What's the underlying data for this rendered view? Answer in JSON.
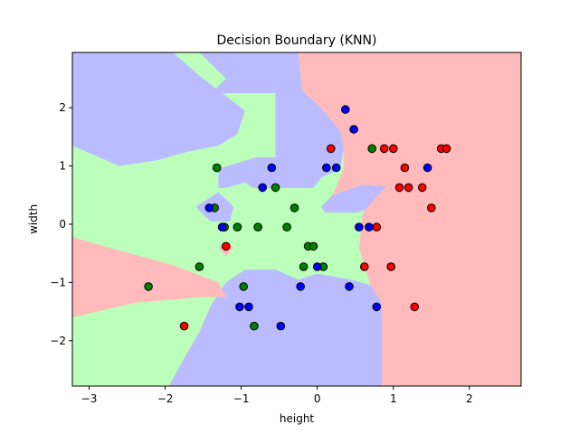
{
  "chart_data": {
    "type": "scatter",
    "title": "Decision Boundary (KNN)",
    "xlabel": "height",
    "ylabel": "width",
    "xlim": [
      -3.22,
      2.68
    ],
    "ylim": [
      -2.78,
      2.95
    ],
    "xticks": [
      -3,
      -2,
      -1,
      0,
      1,
      2
    ],
    "yticks": [
      -2,
      -1,
      0,
      1,
      2
    ],
    "grid": false,
    "region_colors": {
      "red": "#ffbbbb",
      "green": "#bbffbb",
      "blue": "#bbbbff"
    },
    "point_colors": {
      "red": "#ff0000",
      "green": "#008000",
      "blue": "#0000ff"
    },
    "regions": [
      {
        "class": "blue",
        "polygon": [
          [
            -3.22,
            2.95
          ],
          [
            -1.9,
            2.95
          ],
          [
            -1.55,
            2.55
          ],
          [
            -1.25,
            2.25
          ],
          [
            -0.95,
            1.95
          ],
          [
            -1.05,
            1.55
          ],
          [
            -1.3,
            1.35
          ],
          [
            -1.7,
            1.25
          ],
          [
            -2.1,
            1.1
          ],
          [
            -2.6,
            1.0
          ],
          [
            -3.22,
            1.35
          ]
        ]
      },
      {
        "class": "blue",
        "polygon": [
          [
            -1.55,
            2.95
          ],
          [
            -0.25,
            2.95
          ],
          [
            -0.2,
            2.3
          ],
          [
            0.05,
            2.0
          ],
          [
            0.3,
            1.6
          ],
          [
            0.35,
            1.3
          ],
          [
            0.3,
            0.95
          ],
          [
            0.05,
            0.8
          ],
          [
            -0.05,
            0.62
          ],
          [
            -0.55,
            0.62
          ],
          [
            -0.55,
            1.15
          ],
          [
            -0.55,
            2.25
          ],
          [
            -1.4,
            2.25
          ],
          [
            -1.2,
            2.5
          ]
        ]
      },
      {
        "class": "blue",
        "polygon": [
          [
            -1.3,
            0.95
          ],
          [
            -0.8,
            1.15
          ],
          [
            -0.55,
            1.15
          ],
          [
            -0.55,
            0.62
          ],
          [
            -0.85,
            0.62
          ],
          [
            -0.95,
            0.72
          ],
          [
            -1.2,
            0.62
          ],
          [
            -1.3,
            0.62
          ]
        ]
      },
      {
        "class": "blue",
        "polygon": [
          [
            -1.6,
            0.3
          ],
          [
            -1.3,
            0.55
          ],
          [
            -1.1,
            0.3
          ],
          [
            -1.15,
            0.05
          ],
          [
            -1.4,
            0.05
          ]
        ]
      },
      {
        "class": "blue",
        "polygon": [
          [
            0.05,
            0.3
          ],
          [
            0.2,
            0.5
          ],
          [
            0.6,
            0.68
          ],
          [
            0.9,
            0.65
          ],
          [
            0.8,
            0.3
          ],
          [
            0.5,
            0.2
          ],
          [
            0.1,
            0.2
          ]
        ]
      },
      {
        "class": "blue",
        "polygon": [
          [
            -1.95,
            -2.78
          ],
          [
            0.85,
            -2.78
          ],
          [
            0.85,
            -1.35
          ],
          [
            0.7,
            -1.05
          ],
          [
            0.45,
            -0.95
          ],
          [
            0.0,
            -0.85
          ],
          [
            -0.25,
            -0.95
          ],
          [
            -0.55,
            -0.78
          ],
          [
            -0.95,
            -0.78
          ],
          [
            -1.2,
            -1.0
          ],
          [
            -1.4,
            -1.4
          ],
          [
            -1.55,
            -1.85
          ],
          [
            -1.75,
            -2.3
          ]
        ]
      },
      {
        "class": "red",
        "polygon": [
          [
            -0.25,
            2.95
          ],
          [
            2.68,
            2.95
          ],
          [
            2.68,
            -2.78
          ],
          [
            0.85,
            -2.78
          ],
          [
            0.85,
            -1.35
          ],
          [
            0.7,
            -1.05
          ],
          [
            0.55,
            -0.4
          ],
          [
            0.6,
            0.2
          ],
          [
            0.9,
            0.65
          ],
          [
            0.6,
            0.68
          ],
          [
            0.2,
            0.5
          ],
          [
            0.35,
            0.95
          ],
          [
            0.35,
            1.3
          ],
          [
            0.3,
            1.6
          ],
          [
            0.05,
            2.0
          ],
          [
            -0.2,
            2.3
          ]
        ]
      },
      {
        "class": "red",
        "polygon": [
          [
            -3.22,
            -0.22
          ],
          [
            -2.6,
            -0.45
          ],
          [
            -1.9,
            -0.7
          ],
          [
            -1.3,
            -1.0
          ],
          [
            -1.2,
            -1.25
          ],
          [
            -1.5,
            -1.25
          ],
          [
            -2.4,
            -1.35
          ],
          [
            -3.22,
            -1.6
          ]
        ]
      },
      {
        "class": "red",
        "polygon": [
          [
            -1.3,
            -0.4
          ],
          [
            -1.2,
            -0.55
          ],
          [
            -1.1,
            -0.4
          ],
          [
            -1.2,
            -0.3
          ]
        ]
      }
    ],
    "series": [
      {
        "class": "red",
        "points": [
          [
            0.18,
            1.3
          ],
          [
            0.88,
            1.3
          ],
          [
            1.0,
            1.3
          ],
          [
            1.63,
            1.3
          ],
          [
            1.7,
            1.3
          ],
          [
            1.15,
            0.97
          ],
          [
            1.08,
            0.63
          ],
          [
            1.2,
            0.63
          ],
          [
            1.38,
            0.63
          ],
          [
            1.5,
            0.28
          ],
          [
            0.78,
            -0.05
          ],
          [
            0.62,
            -0.73
          ],
          [
            0.97,
            -0.73
          ],
          [
            1.28,
            -1.42
          ],
          [
            -1.2,
            -0.38
          ],
          [
            -1.75,
            -1.75
          ]
        ]
      },
      {
        "class": "green",
        "points": [
          [
            0.72,
            1.3
          ],
          [
            -1.32,
            0.97
          ],
          [
            -0.55,
            0.63
          ],
          [
            -1.35,
            0.28
          ],
          [
            -0.3,
            0.28
          ],
          [
            -1.22,
            -0.05
          ],
          [
            -1.05,
            -0.05
          ],
          [
            -0.78,
            -0.05
          ],
          [
            -0.4,
            -0.05
          ],
          [
            -0.12,
            -0.38
          ],
          [
            -0.05,
            -0.38
          ],
          [
            -1.55,
            -0.73
          ],
          [
            -0.18,
            -0.73
          ],
          [
            0.08,
            -0.73
          ],
          [
            -2.22,
            -1.07
          ],
          [
            -0.97,
            -1.07
          ],
          [
            -0.83,
            -1.75
          ]
        ]
      },
      {
        "class": "blue",
        "points": [
          [
            0.37,
            1.97
          ],
          [
            0.48,
            1.63
          ],
          [
            -0.6,
            0.97
          ],
          [
            0.12,
            0.97
          ],
          [
            0.25,
            0.97
          ],
          [
            1.45,
            0.97
          ],
          [
            -0.72,
            0.63
          ],
          [
            -1.42,
            0.28
          ],
          [
            -1.25,
            -0.05
          ],
          [
            0.55,
            -0.05
          ],
          [
            0.68,
            -0.05
          ],
          [
            0.0,
            -0.73
          ],
          [
            -0.22,
            -1.07
          ],
          [
            0.42,
            -1.07
          ],
          [
            -1.02,
            -1.42
          ],
          [
            -0.9,
            -1.42
          ],
          [
            0.78,
            -1.42
          ],
          [
            -0.48,
            -1.75
          ]
        ]
      }
    ]
  }
}
